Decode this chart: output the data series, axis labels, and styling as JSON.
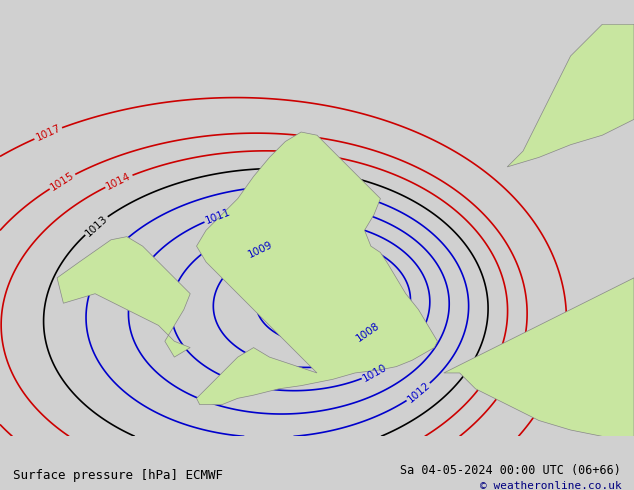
{
  "title_left": "Surface pressure [hPa] ECMWF",
  "title_right": "Sa 04-05-2024 00:00 UTC (06+66)",
  "copyright": "© weatheronline.co.uk",
  "bg_color": "#d0d0d0",
  "land_color": "#c8e6a0",
  "sea_color": "#d8d8d8",
  "blue_contour_color": "#0000cc",
  "black_contour_color": "#000000",
  "red_contour_color": "#cc0000",
  "label_fontsize": 8,
  "footer_fontsize": 9,
  "figsize": [
    6.34,
    4.9
  ],
  "dpi": 100
}
